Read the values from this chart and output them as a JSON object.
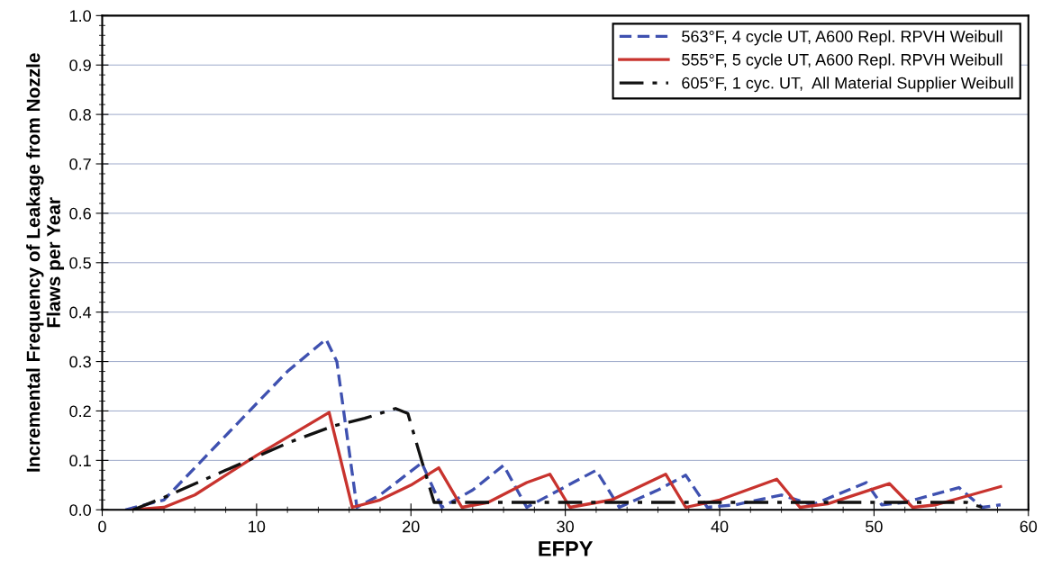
{
  "chart_data": {
    "type": "line",
    "xlabel": "EFPY",
    "ylabel": "Incremental Frequency of Leakage from Nozzle\nFlaws per Year",
    "xlim": [
      0,
      60
    ],
    "xticks": [
      0,
      10,
      20,
      30,
      40,
      50,
      60
    ],
    "ylim": [
      0,
      1.0
    ],
    "yticks": [
      {
        "value": 0,
        "label": "0.0"
      },
      {
        "value": 0.1,
        "label": "0.1"
      },
      {
        "value": 0.2,
        "label": "0.2"
      },
      {
        "value": 0.3,
        "label": "0.3"
      },
      {
        "value": 0.4,
        "label": "0.4"
      },
      {
        "value": 0.5,
        "label": "0.5"
      },
      {
        "value": 0.6,
        "label": "0.6"
      },
      {
        "value": 0.7,
        "label": "0.7"
      },
      {
        "value": 0.8,
        "label": "0.8"
      },
      {
        "value": 0.9,
        "label": "0.9"
      },
      {
        "value": 1.0,
        "label": "1.0"
      }
    ],
    "grid": "y",
    "legend": "top right",
    "marker": "none",
    "series": [
      {
        "name": "563°F, 4 cycle UT, A600 Repl. RPVH Weibull",
        "color": "#3f51b0",
        "line_style": "dashed",
        "x": [
          1.5,
          4,
          8,
          12,
          14.5,
          15.2,
          16.5,
          18,
          20.7,
          22,
          24,
          26,
          27.5,
          29,
          32,
          33.5,
          36,
          37.8,
          39.2,
          41,
          44,
          46,
          49.5,
          50.5,
          52,
          55.5,
          57,
          58.2
        ],
        "values": [
          0,
          0.02,
          0.15,
          0.28,
          0.345,
          0.3,
          0.005,
          0.03,
          0.095,
          0.005,
          0.04,
          0.09,
          0.005,
          0.03,
          0.08,
          0.005,
          0.04,
          0.07,
          0.005,
          0.01,
          0.03,
          0.01,
          0.055,
          0.01,
          0.015,
          0.045,
          0.005,
          0.01
        ]
      },
      {
        "name": "555°F, 5 cycle UT, A600 Repl. RPVH Weibull",
        "color": "#c8332e",
        "line_style": "solid",
        "x": [
          2,
          4,
          6,
          10,
          14.7,
          16.2,
          18,
          20,
          21.8,
          23.3,
          25,
          27.5,
          29,
          30.3,
          33,
          36.5,
          37.8,
          40,
          43.7,
          45.2,
          47,
          51,
          52.5,
          54,
          58.2
        ],
        "values": [
          0,
          0.005,
          0.03,
          0.11,
          0.197,
          0.005,
          0.02,
          0.05,
          0.085,
          0.005,
          0.015,
          0.055,
          0.072,
          0.005,
          0.02,
          0.072,
          0.005,
          0.02,
          0.062,
          0.005,
          0.012,
          0.053,
          0.005,
          0.01,
          0.047
        ]
      },
      {
        "name": "605°F, 1 cyc. UT,  All Material Supplier Weibull",
        "color": "#111111",
        "line_style": "dashdot",
        "x": [
          2,
          4,
          8,
          12,
          15,
          17,
          19,
          19.8,
          20.5,
          21.5,
          56,
          57
        ],
        "values": [
          0,
          0.025,
          0.08,
          0.135,
          0.17,
          0.185,
          0.205,
          0.195,
          0.12,
          0.015,
          0.015,
          0.005
        ]
      }
    ]
  }
}
